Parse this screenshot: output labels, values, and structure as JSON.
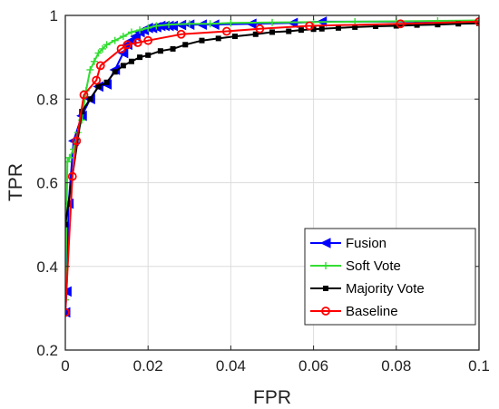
{
  "chart_data": {
    "type": "line",
    "title": "",
    "xlabel": "FPR",
    "ylabel": "TPR",
    "xlim": [
      0,
      0.1
    ],
    "ylim": [
      0.2,
      1
    ],
    "grid": true,
    "legend_position": "bottom-right",
    "xticks": [
      "0",
      "0.02",
      "0.04",
      "0.06",
      "0.08",
      "0.1"
    ],
    "yticks": [
      "0.2",
      "0.4",
      "0.6",
      "0.8",
      "1"
    ],
    "series": [
      {
        "name": "Fusion",
        "color": "#0000ff",
        "marker": "triangle-left",
        "x": [
          0,
          0.0003,
          0.0008,
          0.002,
          0.004,
          0.006,
          0.008,
          0.01,
          0.012,
          0.014,
          0.015,
          0.016,
          0.017,
          0.018,
          0.019,
          0.02,
          0.021,
          0.022,
          0.023,
          0.024,
          0.025,
          0.026,
          0.028,
          0.03,
          0.033,
          0.036,
          0.045,
          0.055,
          0.062,
          0.1
        ],
        "y": [
          0.29,
          0.34,
          0.55,
          0.7,
          0.76,
          0.8,
          0.83,
          0.835,
          0.87,
          0.91,
          0.93,
          0.94,
          0.95,
          0.96,
          0.965,
          0.97,
          0.97,
          0.972,
          0.975,
          0.975,
          0.975,
          0.975,
          0.977,
          0.978,
          0.978,
          0.978,
          0.98,
          0.982,
          0.985,
          0.985
        ]
      },
      {
        "name": "Soft Vote",
        "color": "#33dd33",
        "marker": "plus",
        "x": [
          0,
          0.0005,
          0.001,
          0.002,
          0.003,
          0.004,
          0.005,
          0.006,
          0.007,
          0.008,
          0.009,
          0.01,
          0.012,
          0.014,
          0.016,
          0.018,
          0.02,
          0.022,
          0.025,
          0.03,
          0.035,
          0.04,
          0.05,
          0.06,
          0.07,
          0.08,
          0.09,
          0.1
        ],
        "y": [
          0.32,
          0.65,
          0.66,
          0.68,
          0.72,
          0.75,
          0.82,
          0.87,
          0.89,
          0.91,
          0.92,
          0.93,
          0.94,
          0.95,
          0.96,
          0.965,
          0.97,
          0.975,
          0.978,
          0.98,
          0.98,
          0.982,
          0.983,
          0.984,
          0.985,
          0.986,
          0.987,
          0.988
        ]
      },
      {
        "name": "Majority Vote",
        "color": "#000000",
        "marker": "square",
        "x": [
          0,
          0.004,
          0.006,
          0.008,
          0.01,
          0.012,
          0.014,
          0.016,
          0.018,
          0.02,
          0.023,
          0.026,
          0.029,
          0.033,
          0.037,
          0.041,
          0.046,
          0.05,
          0.054,
          0.057,
          0.06,
          0.062,
          0.066,
          0.07,
          0.075,
          0.08,
          0.085,
          0.09,
          0.095,
          0.1
        ],
        "y": [
          0.5,
          0.77,
          0.8,
          0.83,
          0.84,
          0.865,
          0.88,
          0.89,
          0.9,
          0.905,
          0.915,
          0.92,
          0.93,
          0.94,
          0.945,
          0.95,
          0.955,
          0.96,
          0.962,
          0.965,
          0.967,
          0.968,
          0.97,
          0.972,
          0.974,
          0.975,
          0.977,
          0.978,
          0.98,
          0.981
        ]
      },
      {
        "name": "Baseline",
        "color": "#ff0000",
        "marker": "circle",
        "x": [
          0,
          0.0017,
          0.0027,
          0.0045,
          0.0075,
          0.0085,
          0.0135,
          0.015,
          0.0175,
          0.02,
          0.028,
          0.039,
          0.047,
          0.059,
          0.081,
          0.1
        ],
        "y": [
          0.29,
          0.615,
          0.7,
          0.81,
          0.845,
          0.88,
          0.92,
          0.93,
          0.935,
          0.94,
          0.955,
          0.962,
          0.968,
          0.975,
          0.98,
          0.985
        ]
      }
    ]
  }
}
